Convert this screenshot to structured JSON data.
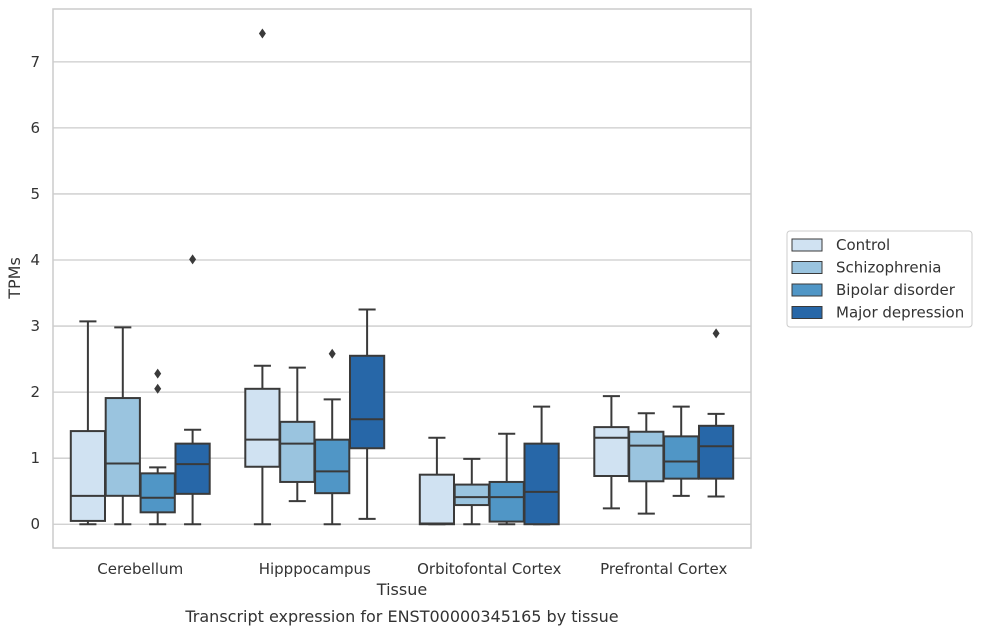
{
  "chart_data": {
    "type": "box",
    "ylabel": "TPMs",
    "xlabel": "Tissue",
    "caption": "Transcript expression for ENST00000345165 by tissue",
    "categories": [
      "Cerebellum",
      "Hipppocampus",
      "Orbitofontal Cortex",
      "Prefrontal Cortex"
    ],
    "ylim": [
      -0.36,
      7.8
    ],
    "yticks": [
      0,
      1,
      2,
      3,
      4,
      5,
      6,
      7
    ],
    "grid": "horizontal",
    "legend_position": "right",
    "series": [
      {
        "name": "Control",
        "color": "#d0e2f2",
        "boxes": [
          {
            "whislo": 0.0,
            "q1": 0.05,
            "med": 0.43,
            "q3": 1.41,
            "whishi": 3.07,
            "fliers": []
          },
          {
            "whislo": 0.0,
            "q1": 0.87,
            "med": 1.28,
            "q3": 2.05,
            "whishi": 2.4,
            "fliers": [
              7.43
            ]
          },
          {
            "whislo": 0.0,
            "q1": 0.0,
            "med": 0.01,
            "q3": 0.75,
            "whishi": 1.31,
            "fliers": []
          },
          {
            "whislo": 0.24,
            "q1": 0.73,
            "med": 1.31,
            "q3": 1.47,
            "whishi": 1.94,
            "fliers": []
          }
        ]
      },
      {
        "name": "Schizophrenia",
        "color": "#9ac4df",
        "boxes": [
          {
            "whislo": 0.0,
            "q1": 0.43,
            "med": 0.92,
            "q3": 1.91,
            "whishi": 2.98,
            "fliers": []
          },
          {
            "whislo": 0.35,
            "q1": 0.64,
            "med": 1.22,
            "q3": 1.55,
            "whishi": 2.37,
            "fliers": []
          },
          {
            "whislo": 0.0,
            "q1": 0.29,
            "med": 0.41,
            "q3": 0.6,
            "whishi": 0.99,
            "fliers": []
          },
          {
            "whislo": 0.16,
            "q1": 0.65,
            "med": 1.19,
            "q3": 1.4,
            "whishi": 1.68,
            "fliers": []
          }
        ]
      },
      {
        "name": "Bipolar disorder",
        "color": "#5096c6",
        "boxes": [
          {
            "whislo": 0.0,
            "q1": 0.18,
            "med": 0.4,
            "q3": 0.77,
            "whishi": 0.86,
            "fliers": [
              2.05,
              2.28
            ]
          },
          {
            "whislo": 0.0,
            "q1": 0.47,
            "med": 0.8,
            "q3": 1.28,
            "whishi": 1.89,
            "fliers": [
              2.58
            ]
          },
          {
            "whislo": 0.0,
            "q1": 0.04,
            "med": 0.41,
            "q3": 0.64,
            "whishi": 1.37,
            "fliers": []
          },
          {
            "whislo": 0.43,
            "q1": 0.69,
            "med": 0.95,
            "q3": 1.33,
            "whishi": 1.78,
            "fliers": []
          }
        ]
      },
      {
        "name": "Major depression",
        "color": "#2767a8",
        "boxes": [
          {
            "whislo": 0.0,
            "q1": 0.46,
            "med": 0.91,
            "q3": 1.22,
            "whishi": 1.43,
            "fliers": [
              4.01
            ]
          },
          {
            "whislo": 0.08,
            "q1": 1.15,
            "med": 1.59,
            "q3": 2.55,
            "whishi": 3.25,
            "fliers": []
          },
          {
            "whislo": 0.0,
            "q1": 0.0,
            "med": 0.49,
            "q3": 1.22,
            "whishi": 1.78,
            "fliers": []
          },
          {
            "whislo": 0.42,
            "q1": 0.69,
            "med": 1.18,
            "q3": 1.49,
            "whishi": 1.67,
            "fliers": [
              2.89
            ]
          }
        ]
      }
    ]
  }
}
